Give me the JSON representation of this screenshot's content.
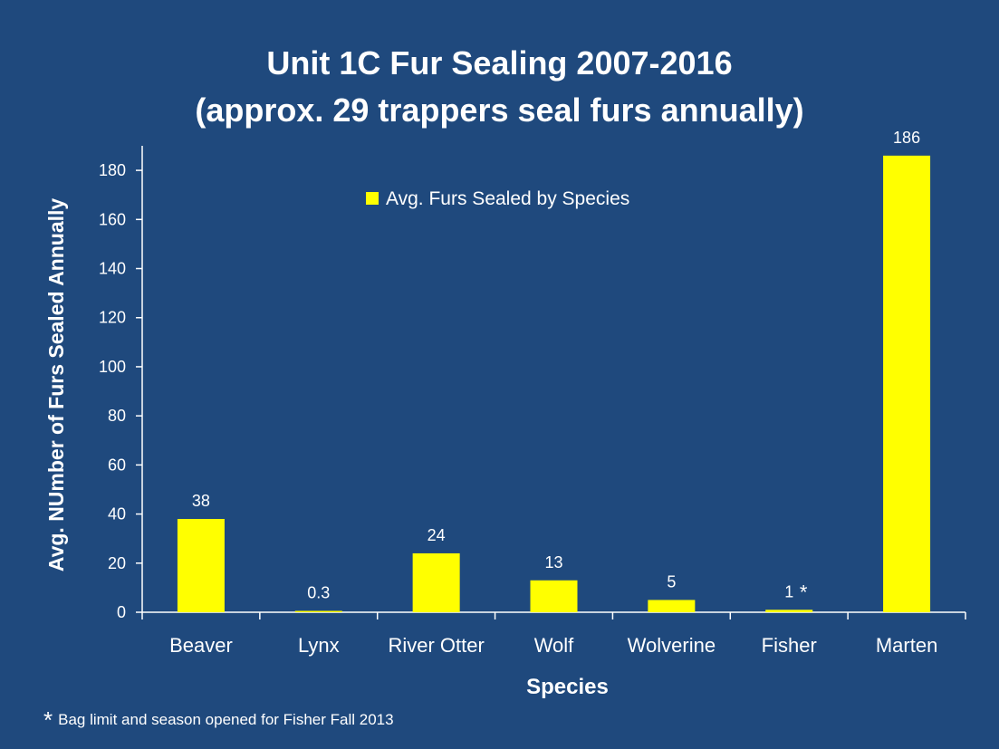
{
  "slide": {
    "title_line1": "Unit 1C Fur Sealing 2007-2016",
    "title_line2": "(approx. 29 trappers seal furs annually)",
    "footnote_mark": "*",
    "footnote_text": "Bag limit and season opened for Fisher Fall 2013"
  },
  "colors": {
    "background": "#1f497d",
    "bar": "#ffff00",
    "text": "#ffffff"
  },
  "chart_data": {
    "type": "bar",
    "categories": [
      "Beaver",
      "Lynx",
      "River Otter",
      "Wolf",
      "Wolverine",
      "Fisher",
      "Marten"
    ],
    "series": [
      {
        "name": "Avg. Furs Sealed by Species",
        "values": [
          38,
          0.3,
          24,
          13,
          5,
          1,
          186
        ]
      }
    ],
    "data_labels": [
      "38",
      "0.3",
      "24",
      "13",
      "5",
      "1",
      "186"
    ],
    "label_annotations": [
      "",
      "",
      "",
      "",
      "",
      "*",
      ""
    ],
    "xlabel": "Species",
    "ylabel": "Avg. NUmber of Furs Sealed Annually",
    "ylim": [
      0,
      190
    ],
    "yticks": [
      0,
      20,
      40,
      60,
      80,
      100,
      120,
      140,
      160,
      180
    ],
    "grid": false,
    "legend_position": "top-center"
  }
}
